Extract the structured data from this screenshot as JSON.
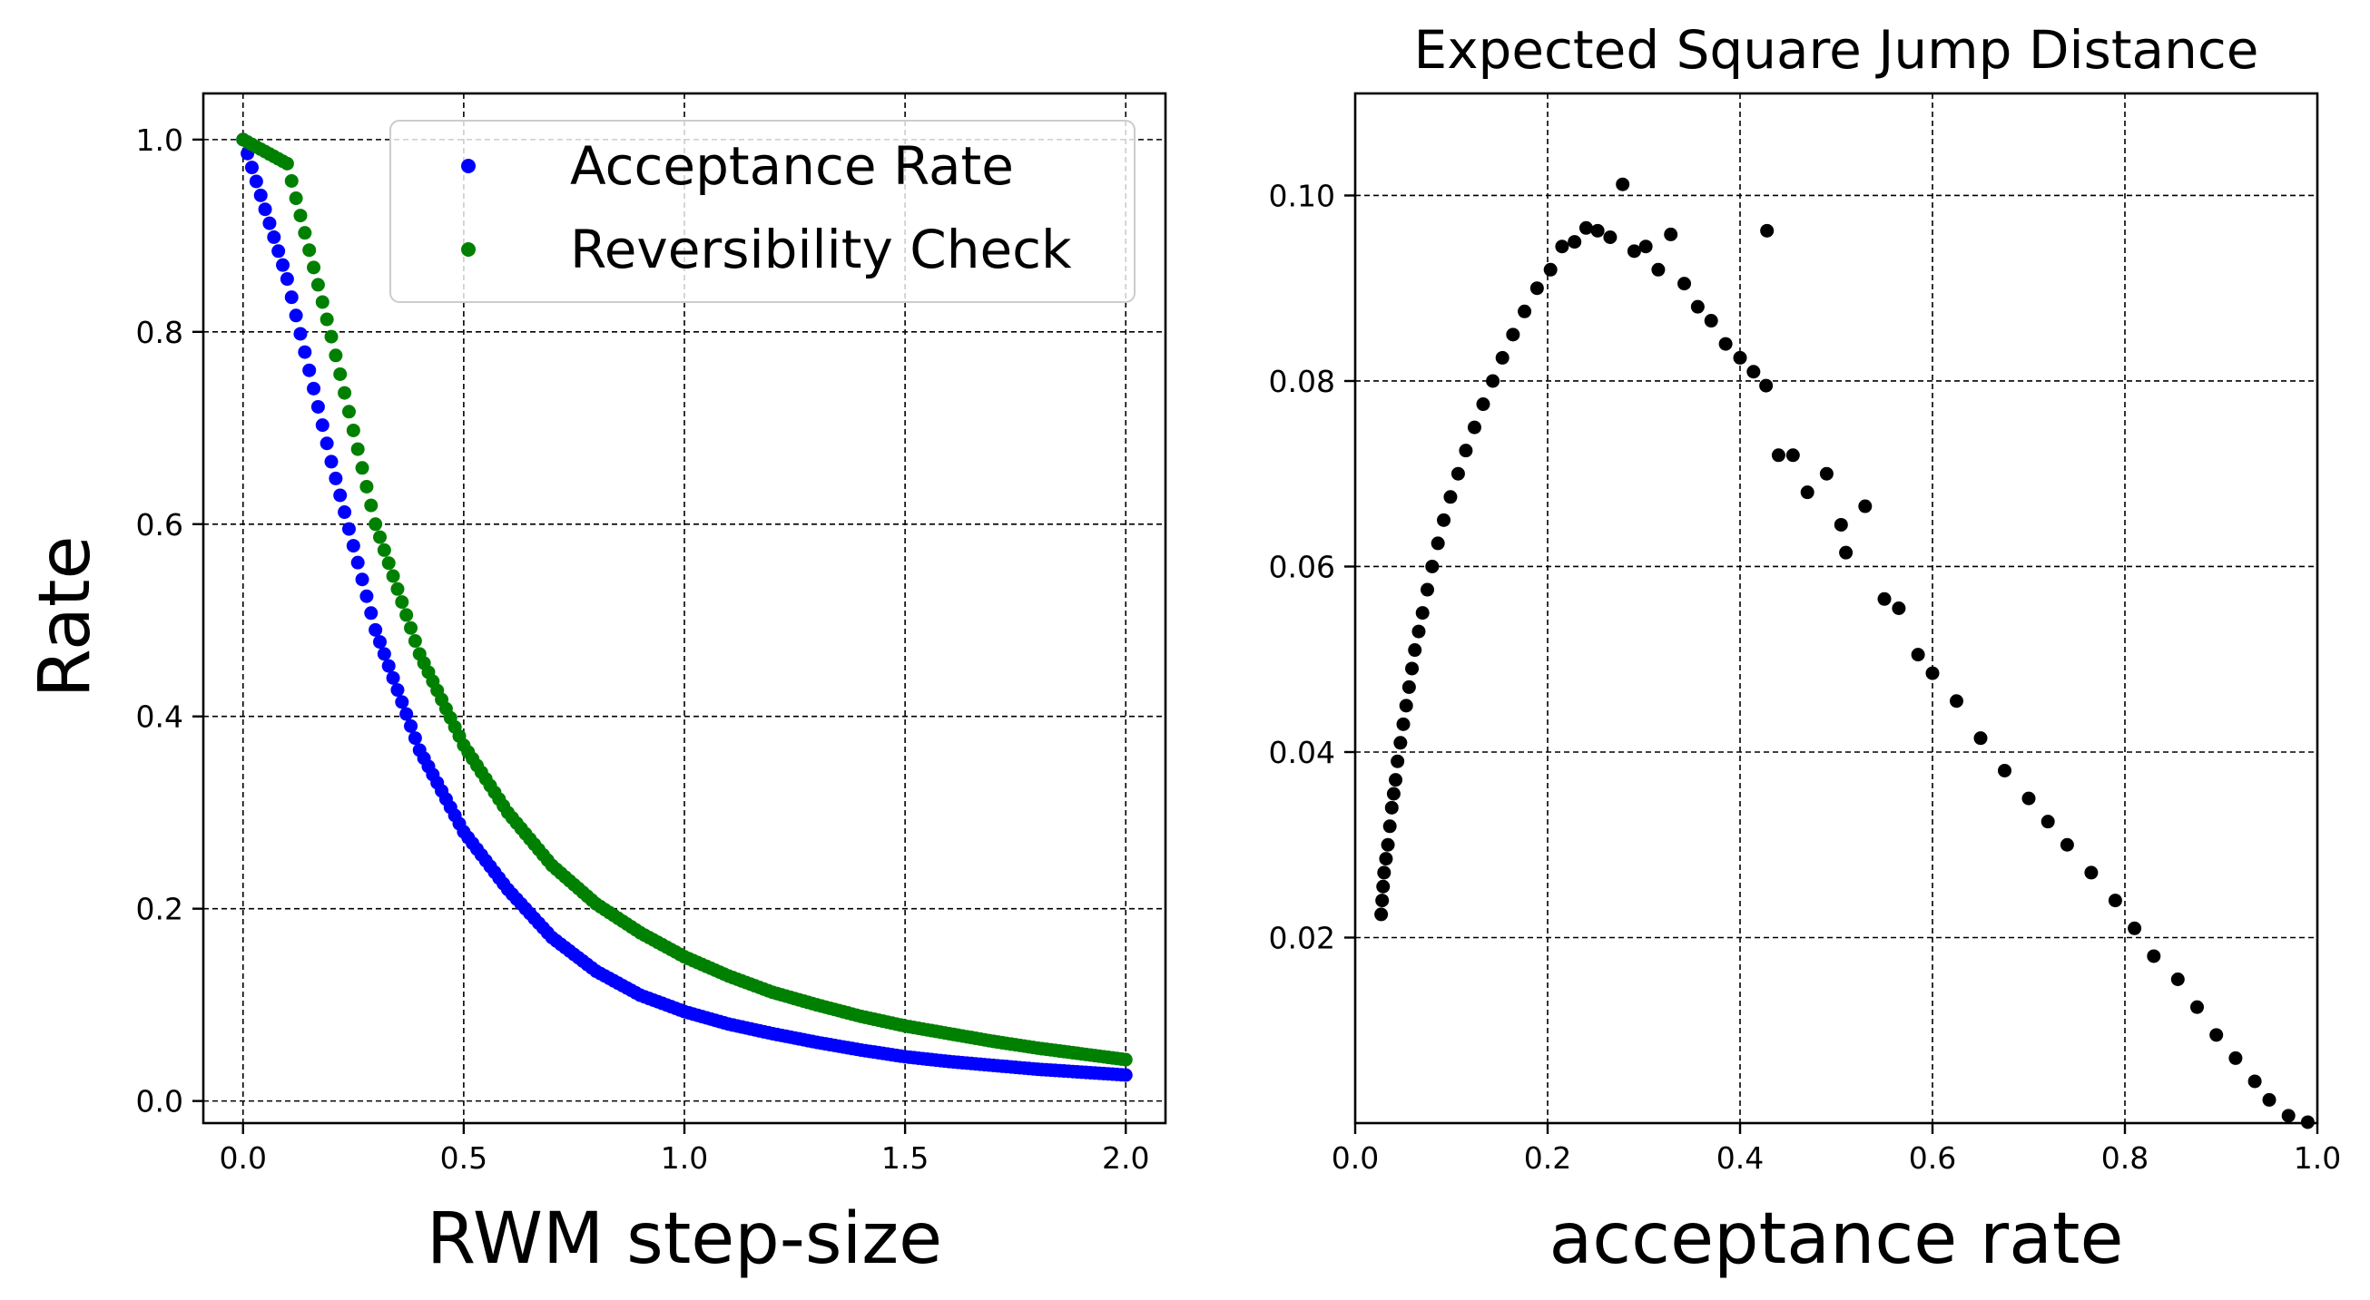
{
  "chart_data": [
    {
      "type": "scatter",
      "title": "",
      "xlabel": "RWM step-size",
      "ylabel": "Rate",
      "xlim": [
        -0.09,
        2.09
      ],
      "ylim": [
        -0.023,
        1.048
      ],
      "xticks": [
        0.0,
        0.5,
        1.0,
        1.5,
        2.0
      ],
      "xtick_labels": [
        "0.0",
        "0.5",
        "1.0",
        "1.5",
        "2.0"
      ],
      "yticks": [
        0.0,
        0.2,
        0.4,
        0.6,
        0.8,
        1.0
      ],
      "ytick_labels": [
        "0.0",
        "0.2",
        "0.4",
        "0.6",
        "0.8",
        "1.0"
      ],
      "grid": true,
      "legend_position": "top-right",
      "x": [
        0.0,
        0.1,
        0.2,
        0.3,
        0.4,
        0.5,
        0.6,
        0.7,
        0.8,
        0.9,
        1.0,
        1.1,
        1.2,
        1.3,
        1.4,
        1.5,
        1.6,
        1.7,
        1.8,
        1.9,
        2.0
      ],
      "series": [
        {
          "name": "Acceptance Rate",
          "color": "#0000ff",
          "values": [
            1.0,
            0.855,
            0.665,
            0.49,
            0.365,
            0.28,
            0.22,
            0.17,
            0.135,
            0.11,
            0.093,
            0.08,
            0.07,
            0.061,
            0.053,
            0.046,
            0.041,
            0.037,
            0.033,
            0.03,
            0.027
          ]
        },
        {
          "name": "Reversibility Check",
          "color": "#008000",
          "values": [
            1.0,
            0.975,
            0.795,
            0.6,
            0.465,
            0.37,
            0.3,
            0.245,
            0.205,
            0.175,
            0.15,
            0.13,
            0.113,
            0.1,
            0.088,
            0.078,
            0.07,
            0.062,
            0.055,
            0.049,
            0.043
          ]
        }
      ]
    },
    {
      "type": "scatter",
      "title": "Expected Square Jump Distance",
      "xlabel": "acceptance rate",
      "ylabel": "",
      "xlim": [
        0.0,
        1.0
      ],
      "ylim": [
        0.0,
        0.111
      ],
      "xticks": [
        0.0,
        0.2,
        0.4,
        0.6,
        0.8,
        1.0
      ],
      "xtick_labels": [
        "0.0",
        "0.2",
        "0.4",
        "0.6",
        "0.8",
        "1.0"
      ],
      "yticks": [
        0.02,
        0.04,
        0.06,
        0.08,
        0.1
      ],
      "ytick_labels": [
        "0.02",
        "0.04",
        "0.06",
        "0.08",
        "0.10"
      ],
      "grid": true,
      "series": [
        {
          "color": "#000000",
          "points": [
            [
              0.027,
              0.0225
            ],
            [
              0.028,
              0.024
            ],
            [
              0.029,
              0.0255
            ],
            [
              0.03,
              0.027
            ],
            [
              0.032,
              0.0285
            ],
            [
              0.034,
              0.03
            ],
            [
              0.036,
              0.032
            ],
            [
              0.038,
              0.034
            ],
            [
              0.04,
              0.0355
            ],
            [
              0.042,
              0.037
            ],
            [
              0.044,
              0.039
            ],
            [
              0.047,
              0.041
            ],
            [
              0.05,
              0.043
            ],
            [
              0.053,
              0.045
            ],
            [
              0.056,
              0.047
            ],
            [
              0.059,
              0.049
            ],
            [
              0.062,
              0.051
            ],
            [
              0.066,
              0.053
            ],
            [
              0.07,
              0.055
            ],
            [
              0.075,
              0.0575
            ],
            [
              0.08,
              0.06
            ],
            [
              0.086,
              0.0625
            ],
            [
              0.092,
              0.065
            ],
            [
              0.099,
              0.0675
            ],
            [
              0.107,
              0.07
            ],
            [
              0.115,
              0.0725
            ],
            [
              0.124,
              0.075
            ],
            [
              0.133,
              0.0775
            ],
            [
              0.143,
              0.08
            ],
            [
              0.153,
              0.0825
            ],
            [
              0.164,
              0.085
            ],
            [
              0.176,
              0.0875
            ],
            [
              0.189,
              0.09
            ],
            [
              0.203,
              0.092
            ],
            [
              0.215,
              0.0945
            ],
            [
              0.228,
              0.095
            ],
            [
              0.24,
              0.0965
            ],
            [
              0.252,
              0.0962
            ],
            [
              0.265,
              0.0955
            ],
            [
              0.278,
              0.1012
            ],
            [
              0.29,
              0.094
            ],
            [
              0.302,
              0.0945
            ],
            [
              0.315,
              0.092
            ],
            [
              0.328,
              0.0958
            ],
            [
              0.342,
              0.0905
            ],
            [
              0.356,
              0.088
            ],
            [
              0.37,
              0.0865
            ],
            [
              0.385,
              0.084
            ],
            [
              0.4,
              0.0825
            ],
            [
              0.414,
              0.081
            ],
            [
              0.427,
              0.0795
            ],
            [
              0.428,
              0.0962
            ],
            [
              0.44,
              0.072
            ],
            [
              0.455,
              0.072
            ],
            [
              0.47,
              0.068
            ],
            [
              0.49,
              0.07
            ],
            [
              0.505,
              0.0645
            ],
            [
              0.51,
              0.0615
            ],
            [
              0.53,
              0.0665
            ],
            [
              0.55,
              0.0565
            ],
            [
              0.565,
              0.0555
            ],
            [
              0.585,
              0.0505
            ],
            [
              0.6,
              0.0485
            ],
            [
              0.625,
              0.0455
            ],
            [
              0.65,
              0.0415
            ],
            [
              0.675,
              0.038
            ],
            [
              0.7,
              0.035
            ],
            [
              0.72,
              0.0325
            ],
            [
              0.74,
              0.03
            ],
            [
              0.765,
              0.027
            ],
            [
              0.79,
              0.024
            ],
            [
              0.81,
              0.021
            ],
            [
              0.83,
              0.018
            ],
            [
              0.855,
              0.0155
            ],
            [
              0.875,
              0.0125
            ],
            [
              0.895,
              0.0095
            ],
            [
              0.915,
              0.007
            ],
            [
              0.935,
              0.0045
            ],
            [
              0.95,
              0.0025
            ],
            [
              0.97,
              0.0008
            ],
            [
              0.99,
              0.0001
            ]
          ]
        }
      ]
    }
  ]
}
